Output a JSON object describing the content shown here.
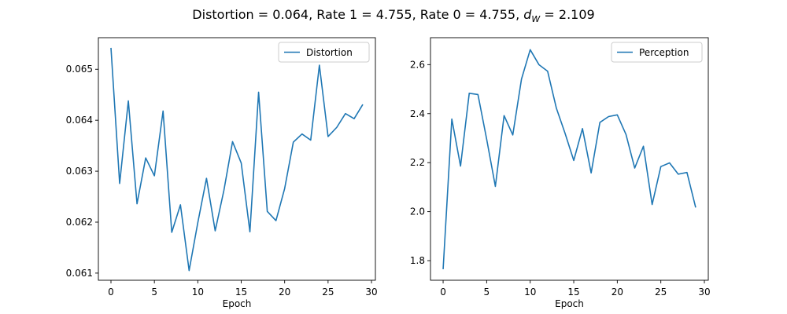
{
  "figure": {
    "suptitle": "Distortion = 0.064, Rate 1 = 4.755, Rate 0 = 4.755, ",
    "suptitle_math_base": "d",
    "suptitle_math_sub": "W",
    "suptitle_tail": " = 2.109"
  },
  "chart_data": [
    {
      "type": "line",
      "xlabel": "Epoch",
      "ylabel": "",
      "xlim": [
        -1.45,
        30.45
      ],
      "ylim": [
        0.06086,
        0.06562
      ],
      "xticks": [
        0,
        5,
        10,
        15,
        20,
        25,
        30
      ],
      "yticks": [
        0.061,
        0.062,
        0.063,
        0.064,
        0.065
      ],
      "ytick_labels": [
        "0.061",
        "0.062",
        "0.063",
        "0.064",
        "0.065"
      ],
      "legend_position": "top-right",
      "grid": false,
      "series": [
        {
          "name": "Distortion",
          "color": "#1f77b4",
          "x": [
            0,
            1,
            2,
            3,
            4,
            5,
            6,
            7,
            8,
            9,
            10,
            11,
            12,
            13,
            14,
            15,
            16,
            17,
            18,
            19,
            20,
            21,
            22,
            23,
            24,
            25,
            26,
            27,
            28,
            29
          ],
          "values": [
            0.06542,
            0.06276,
            0.06438,
            0.06236,
            0.06326,
            0.06291,
            0.06418,
            0.0618,
            0.06234,
            0.06105,
            0.06199,
            0.06286,
            0.06183,
            0.06262,
            0.06358,
            0.06316,
            0.06181,
            0.06455,
            0.06221,
            0.06203,
            0.06266,
            0.06357,
            0.06373,
            0.06361,
            0.06508,
            0.06368,
            0.06386,
            0.06413,
            0.06403,
            0.06431
          ]
        }
      ]
    },
    {
      "type": "line",
      "xlabel": "Epoch",
      "ylabel": "",
      "xlim": [
        -1.45,
        30.45
      ],
      "ylim": [
        1.72,
        2.71
      ],
      "xticks": [
        0,
        5,
        10,
        15,
        20,
        25,
        30
      ],
      "yticks": [
        1.8,
        2.0,
        2.2,
        2.4,
        2.6
      ],
      "ytick_labels": [
        "1.8",
        "2.0",
        "2.2",
        "2.4",
        "2.6"
      ],
      "legend_position": "top-right",
      "grid": false,
      "series": [
        {
          "name": "Perception",
          "color": "#1f77b4",
          "x": [
            0,
            1,
            2,
            3,
            4,
            5,
            6,
            7,
            8,
            9,
            10,
            11,
            12,
            13,
            14,
            15,
            16,
            17,
            18,
            19,
            20,
            21,
            22,
            23,
            24,
            25,
            26,
            27,
            28,
            29
          ],
          "values": [
            1.765,
            2.378,
            2.186,
            2.483,
            2.478,
            2.296,
            2.103,
            2.392,
            2.313,
            2.541,
            2.661,
            2.6,
            2.573,
            2.423,
            2.32,
            2.209,
            2.339,
            2.158,
            2.364,
            2.388,
            2.395,
            2.315,
            2.178,
            2.267,
            2.029,
            2.184,
            2.199,
            2.153,
            2.16,
            2.017
          ]
        }
      ]
    }
  ]
}
